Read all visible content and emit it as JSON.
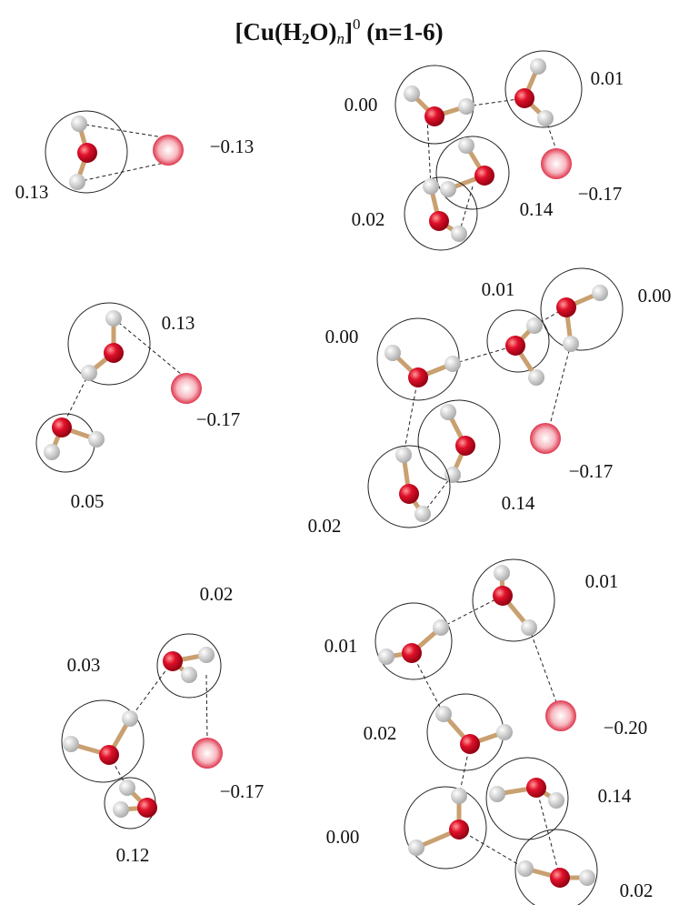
{
  "title": {
    "parts": [
      "[Cu(H",
      "2",
      "O)",
      "n",
      "]",
      "0",
      " (n=1-6)"
    ]
  },
  "panels": [
    {
      "labels": [
        "0.13",
        "−0.13"
      ]
    },
    {
      "labels": [
        "0.00",
        "0.01",
        "−0.17",
        "0.14",
        "0.02"
      ]
    },
    {
      "labels": [
        "0.13",
        "−0.17",
        "0.05"
      ]
    },
    {
      "labels": [
        "0.01",
        "0.00",
        "0.00",
        "−0.17",
        "0.14",
        "0.02"
      ]
    },
    {
      "labels": [
        "0.02",
        "0.03",
        "−0.17",
        "0.12"
      ]
    },
    {
      "labels": [
        "0.01",
        "0.01",
        "0.02",
        "−0.20",
        "0.14",
        "0.00",
        "0.02"
      ]
    }
  ]
}
